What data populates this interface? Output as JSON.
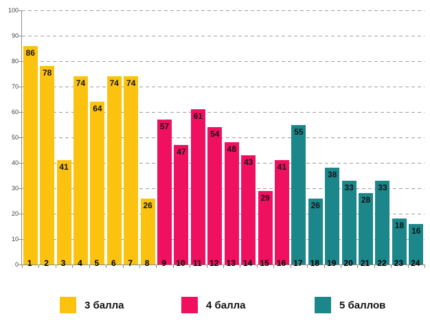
{
  "chart_data": {
    "type": "bar",
    "title": "",
    "xlabel": "",
    "ylabel": "",
    "categories": [
      "1",
      "2",
      "3",
      "4",
      "5",
      "6",
      "7",
      "8",
      "9",
      "10",
      "11",
      "12",
      "13",
      "14",
      "15",
      "16",
      "17",
      "18",
      "19",
      "20",
      "21",
      "22",
      "23",
      "24"
    ],
    "series": [
      {
        "name": "3 балла",
        "color": "#fbc30f",
        "start_category": 1,
        "values": [
          86,
          78,
          41,
          74,
          64,
          74,
          74,
          26
        ]
      },
      {
        "name": "4 балла",
        "color": "#f01060",
        "start_category": 9,
        "values": [
          57,
          47,
          61,
          54,
          48,
          43,
          29,
          41
        ]
      },
      {
        "name": "5 баллов",
        "color": "#1b878b",
        "start_category": 17,
        "values": [
          55,
          26,
          38,
          33,
          28,
          33,
          18,
          16
        ]
      }
    ],
    "ylim": [
      0,
      100
    ],
    "yticks": [
      0,
      10,
      20,
      30,
      40,
      50,
      60,
      70,
      80,
      90,
      100
    ],
    "grid": "horizontal-dashed",
    "legend_position": "bottom",
    "bar_value_labels": true
  },
  "colors": {
    "background": "#ffffff",
    "grid": "#9d9d9d",
    "axis": "#8c8c8c",
    "value_label": "#151515",
    "x_tick_label": "#000000",
    "y_tick_label": "#3f3f3f",
    "legend_label": "#111111"
  }
}
